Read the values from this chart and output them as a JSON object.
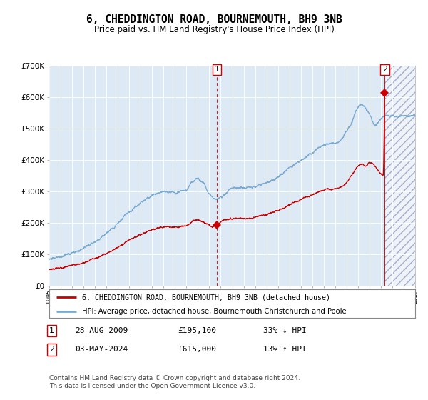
{
  "title": "6, CHEDDINGTON ROAD, BOURNEMOUTH, BH9 3NB",
  "subtitle": "Price paid vs. HM Land Registry's House Price Index (HPI)",
  "legend_line1": "6, CHEDDINGTON ROAD, BOURNEMOUTH, BH9 3NB (detached house)",
  "legend_line2": "HPI: Average price, detached house, Bournemouth Christchurch and Poole",
  "transaction1_date": "28-AUG-2009",
  "transaction1_price": "£195,100",
  "transaction1_hpi": "33% ↓ HPI",
  "transaction2_date": "03-MAY-2024",
  "transaction2_price": "£615,000",
  "transaction2_hpi": "13% ↑ HPI",
  "footer": "Contains HM Land Registry data © Crown copyright and database right 2024.\nThis data is licensed under the Open Government Licence v3.0.",
  "hpi_color": "#7aaad0",
  "price_color": "#cc0000",
  "marker_color": "#cc0000",
  "background_plot": "#ddeaf5",
  "background_fig": "#ffffff",
  "grid_color": "#ffffff",
  "ylim": [
    0,
    700000
  ],
  "year_start": 1995,
  "year_end": 2027,
  "transaction1_year": 2009.66,
  "transaction2_year": 2024.34,
  "transaction1_value": 195100,
  "transaction2_value": 615000,
  "yticks": [
    0,
    100000,
    200000,
    300000,
    400000,
    500000,
    600000,
    700000
  ]
}
